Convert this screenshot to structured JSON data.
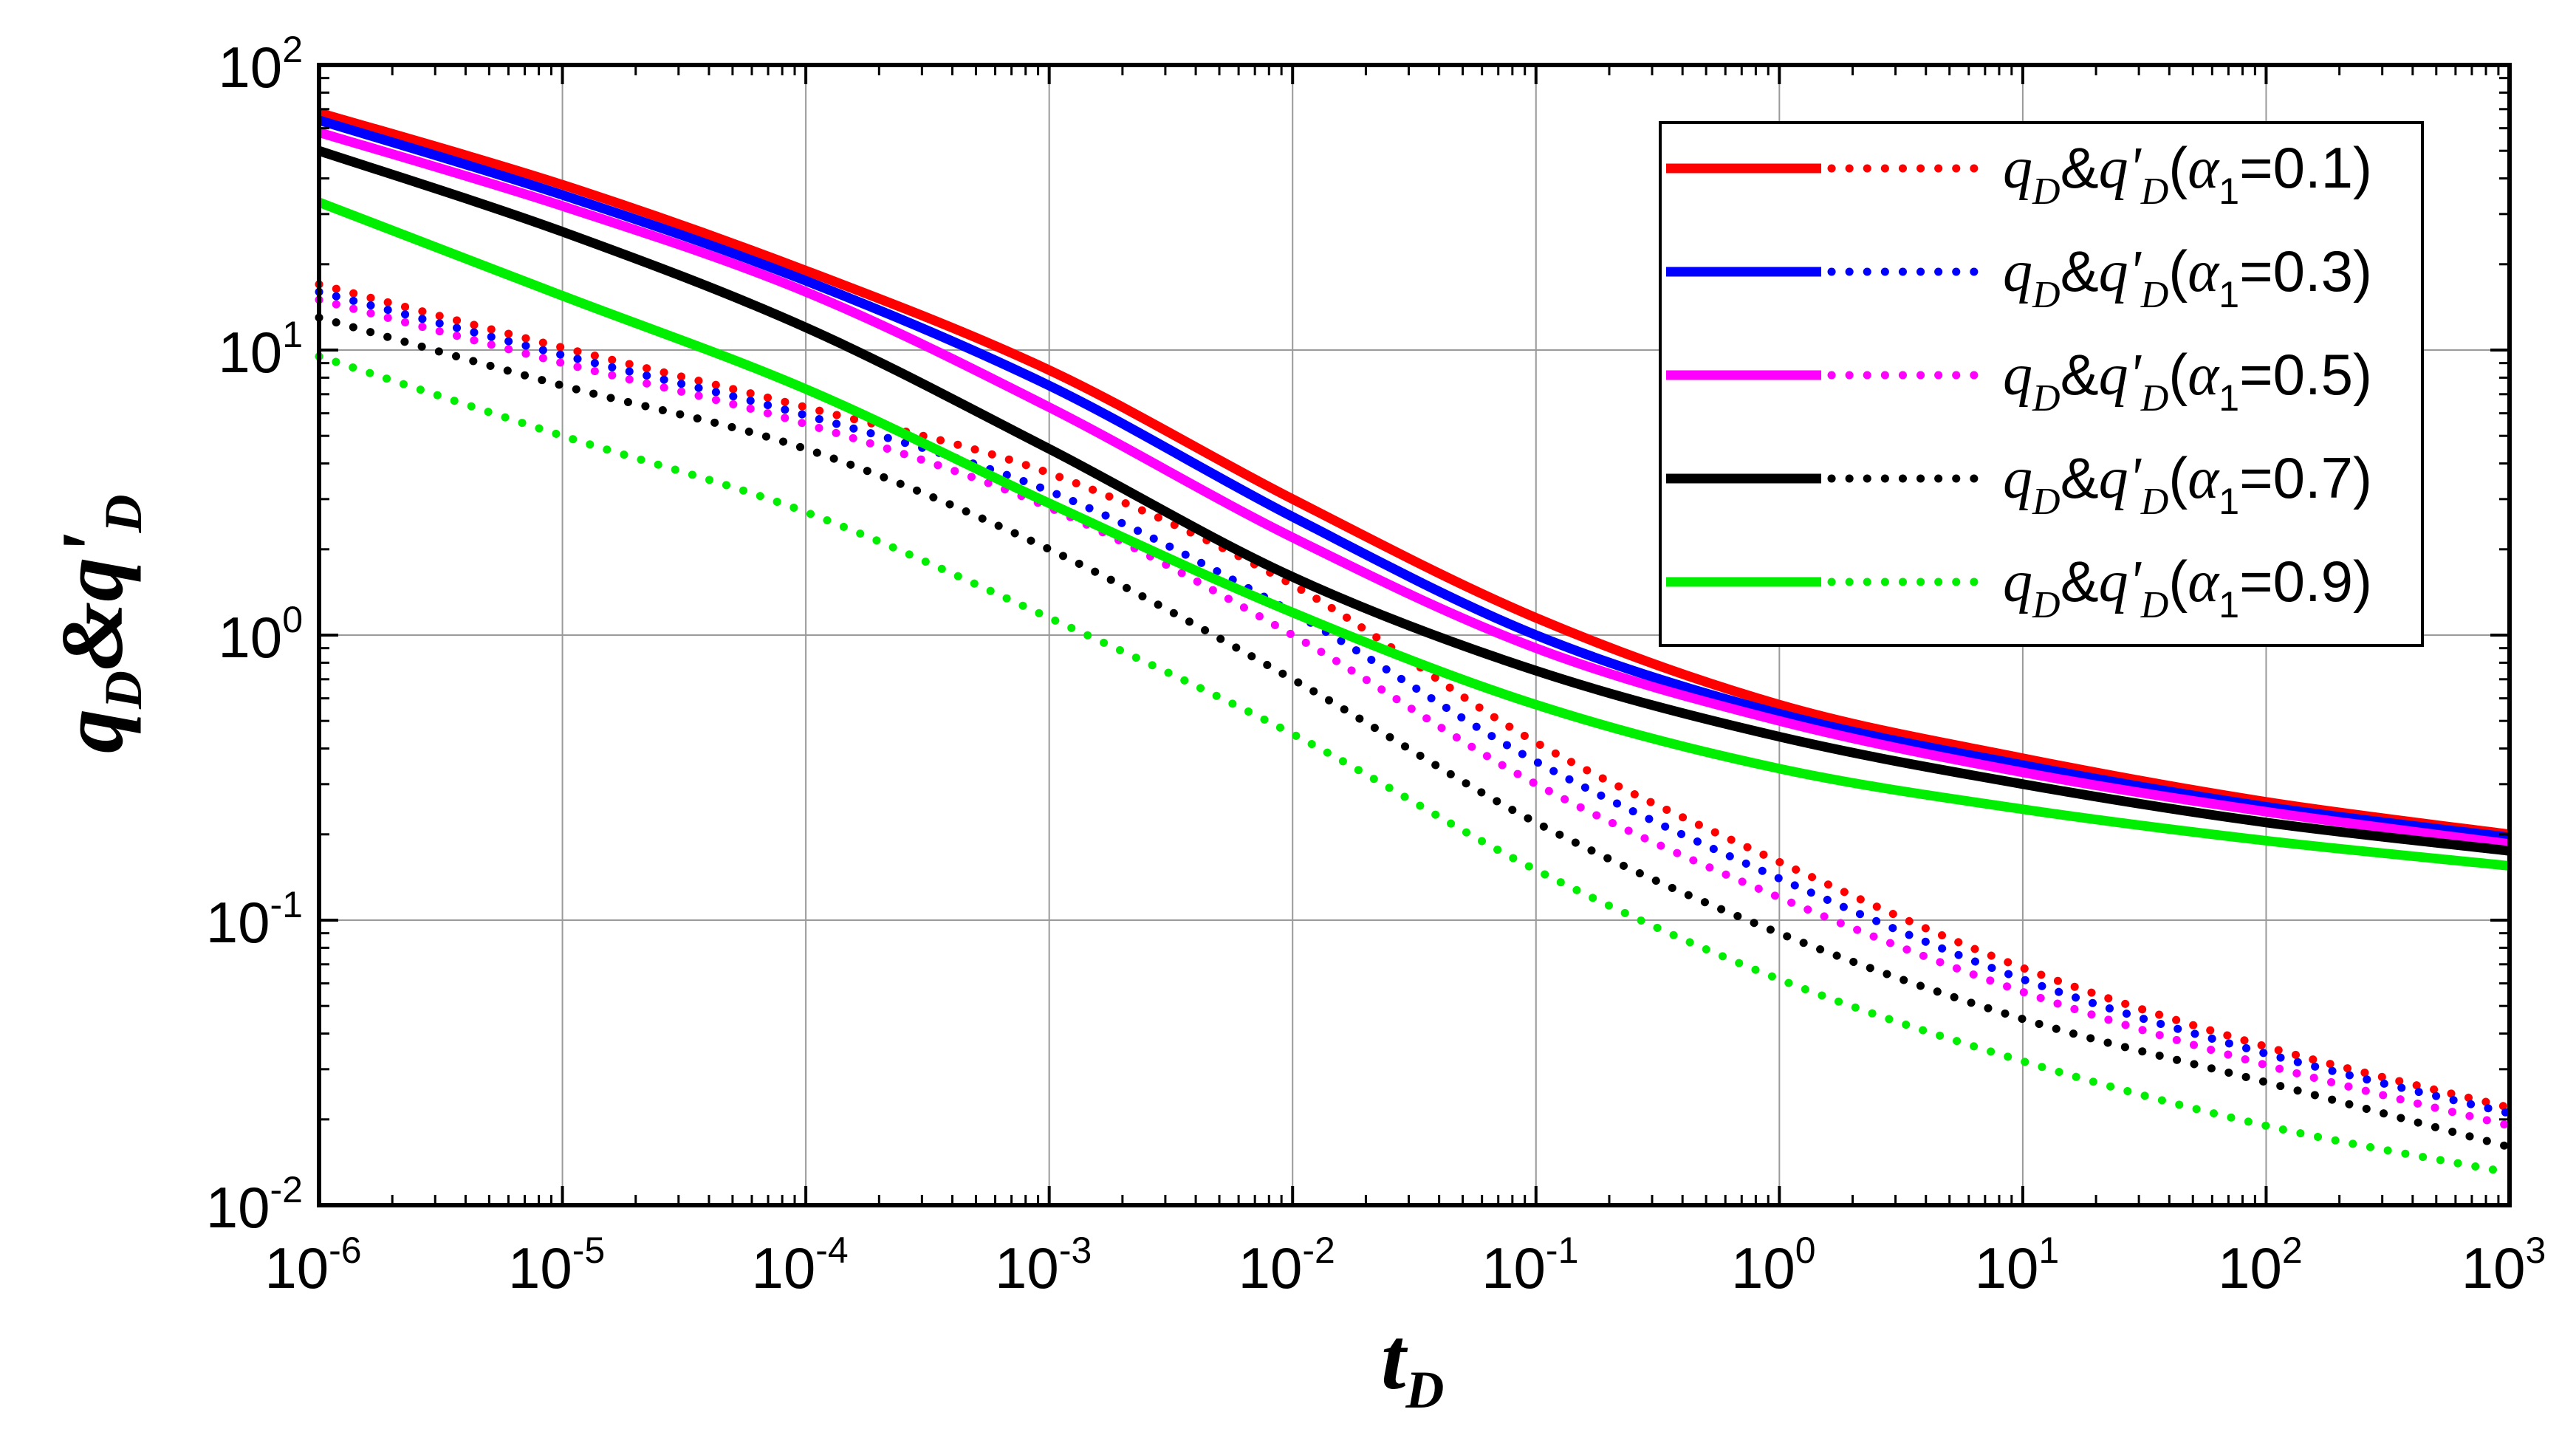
{
  "chart_data": {
    "type": "line",
    "x_scale": "log",
    "y_scale": "log",
    "xlim": [
      1e-06,
      1000
    ],
    "ylim": [
      0.01,
      100
    ],
    "grid": true,
    "legend_position": "top-right",
    "xlabel": {
      "main": "t",
      "sub": "D"
    },
    "ylabel": {
      "main_a": "q",
      "sub_a": "D",
      "amp": "&",
      "main_b": "q'",
      "sub_b": "D"
    },
    "x_ticks": [
      {
        "base": "10",
        "exp": "-6"
      },
      {
        "base": "10",
        "exp": "-5"
      },
      {
        "base": "10",
        "exp": "-4"
      },
      {
        "base": "10",
        "exp": "-3"
      },
      {
        "base": "10",
        "exp": "-2"
      },
      {
        "base": "10",
        "exp": "-1"
      },
      {
        "base": "10",
        "exp": "0"
      },
      {
        "base": "10",
        "exp": "1"
      },
      {
        "base": "10",
        "exp": "2"
      },
      {
        "base": "10",
        "exp": "3"
      }
    ],
    "y_ticks": [
      {
        "base": "10",
        "exp": "-2"
      },
      {
        "base": "10",
        "exp": "-1"
      },
      {
        "base": "10",
        "exp": "0"
      },
      {
        "base": "10",
        "exp": "1"
      },
      {
        "base": "10",
        "exp": "2"
      }
    ],
    "x": [
      1e-06,
      1e-05,
      0.0001,
      0.001,
      0.01,
      0.1,
      1,
      10,
      100,
      1000
    ],
    "series": [
      {
        "label": {
          "q": "q",
          "qsub": "D",
          "amp": "&",
          "qp": "q'",
          "qpsub": "D",
          "open": "(",
          "alpha": "α",
          "alphasub": "1",
          "eq": "=0.1)"
        },
        "color": "#ff0000",
        "qD": [
          68,
          38,
          19,
          8.5,
          3.0,
          1.15,
          0.57,
          0.37,
          0.26,
          0.2
        ],
        "qD_prime": [
          17,
          10.2,
          6.3,
          3.7,
          1.5,
          0.42,
          0.16,
          0.068,
          0.036,
          0.022
        ]
      },
      {
        "label": {
          "q": "q",
          "qsub": "D",
          "amp": "&",
          "qp": "q'",
          "qpsub": "D",
          "open": "(",
          "alpha": "α",
          "alphasub": "1",
          "eq": "=0.3)"
        },
        "color": "#0000ff",
        "qD": [
          64,
          35,
          17.5,
          7.5,
          2.6,
          1.0,
          0.53,
          0.35,
          0.25,
          0.195
        ],
        "qD_prime": [
          16,
          9.6,
          5.9,
          3.2,
          1.2,
          0.36,
          0.14,
          0.062,
          0.034,
          0.021
        ]
      },
      {
        "label": {
          "q": "q",
          "qsub": "D",
          "amp": "&",
          "qp": "q'",
          "qpsub": "D",
          "open": "(",
          "alpha": "α",
          "alphasub": "1",
          "eq": "=0.5)"
        },
        "color": "#ff00ff",
        "qD": [
          58,
          32,
          16,
          6.3,
          2.2,
          0.9,
          0.5,
          0.33,
          0.24,
          0.185
        ],
        "qD_prime": [
          15,
          9.0,
          5.5,
          2.8,
          1.0,
          0.3,
          0.12,
          0.056,
          0.031,
          0.019
        ]
      },
      {
        "label": {
          "q": "q",
          "qsub": "D",
          "amp": "&",
          "qp": "q'",
          "qpsub": "D",
          "open": "(",
          "alpha": "α",
          "alphasub": "1",
          "eq": "=0.7)"
        },
        "color": "#000000",
        "qD": [
          50,
          26,
          12,
          4.5,
          1.6,
          0.75,
          0.44,
          0.3,
          0.22,
          0.175
        ],
        "qD_prime": [
          13,
          7.5,
          4.5,
          2.0,
          0.7,
          0.22,
          0.09,
          0.045,
          0.027,
          0.016
        ]
      },
      {
        "label": {
          "q": "q",
          "qsub": "D",
          "amp": "&",
          "qp": "q'",
          "qpsub": "D",
          "open": "(",
          "alpha": "α",
          "alphasub": "1",
          "eq": "=0.9)"
        },
        "color": "#00ee00",
        "qD": [
          33,
          15.5,
          7.3,
          2.9,
          1.2,
          0.57,
          0.34,
          0.245,
          0.19,
          0.155
        ],
        "qD_prime": [
          9.5,
          5.0,
          2.7,
          1.15,
          0.45,
          0.15,
          0.062,
          0.032,
          0.019,
          0.013
        ]
      }
    ]
  }
}
